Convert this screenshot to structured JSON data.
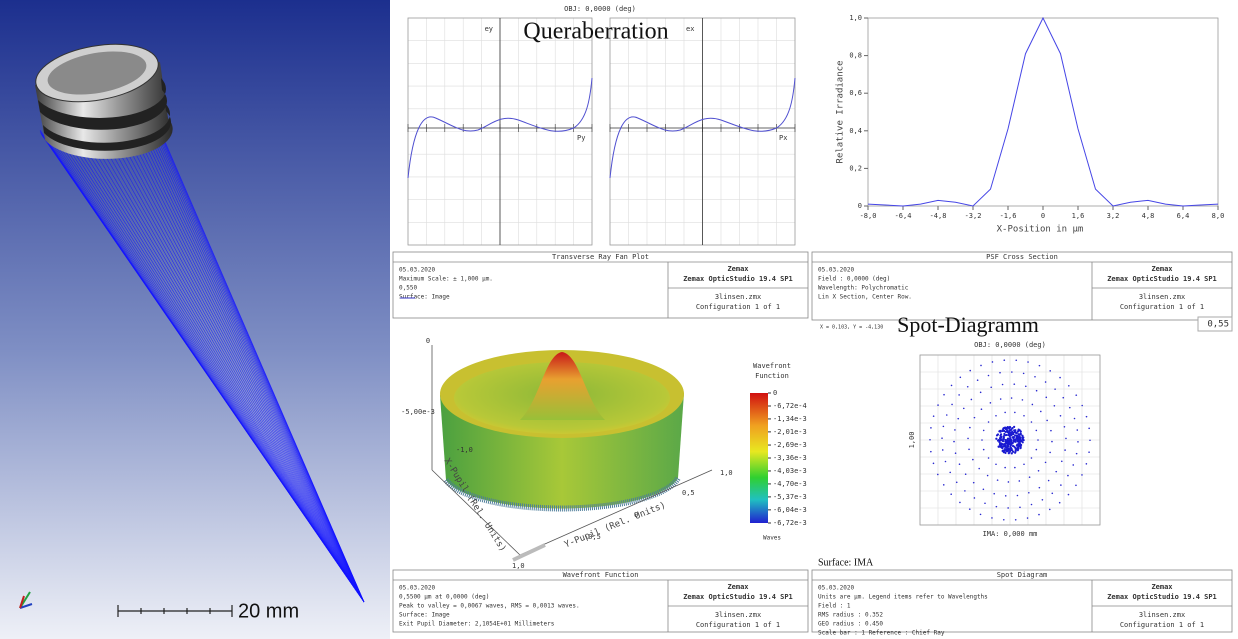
{
  "scene_3d": {
    "scale_label": "20 mm"
  },
  "ray_fan": {
    "overlay_title": "Queraberration",
    "obj": "OBJ: 0,0000 (deg)",
    "left_axis": "ey",
    "left_pupil": "Py",
    "right_axis": "ex",
    "right_pupil": "Px",
    "info": {
      "caption": "Transverse Ray Fan Plot",
      "date": "05.03.2020",
      "scale": "Maximum Scale: ± 1,000 µm.",
      "wavelength": "0,550",
      "surface": "Surface: Image",
      "brand": "Zemax",
      "product": "Zemax OpticStudio 19.4 SP1",
      "file": "3linsen.zmx",
      "config": "Configuration 1 of 1"
    }
  },
  "psf": {
    "chart_data": {
      "type": "line",
      "x": [
        -8,
        -7.2,
        -6.4,
        -5.6,
        -4.8,
        -4,
        -3.2,
        -2.4,
        -1.6,
        -0.8,
        0,
        0.8,
        1.6,
        2.4,
        3.2,
        4,
        4.8,
        5.6,
        6.4,
        7.2,
        8
      ],
      "values": [
        0.01,
        0.005,
        0,
        0.01,
        0.03,
        0.02,
        0,
        0.09,
        0.41,
        0.81,
        1,
        0.81,
        0.41,
        0.09,
        0,
        0.02,
        0.03,
        0.01,
        0,
        0.005,
        0.01
      ],
      "color": "#4646e6",
      "xlim": [
        -8,
        8
      ],
      "ylim": [
        0,
        1
      ],
      "xticks": [
        {
          "value": -8,
          "label": "-8,0"
        },
        {
          "value": -6.4,
          "label": "-6,4"
        },
        {
          "value": -4.8,
          "label": "-4,8"
        },
        {
          "value": -3.2,
          "label": "-3,2"
        },
        {
          "value": -1.6,
          "label": "-1,6"
        },
        0,
        {
          "value": 1.6,
          "label": "1,6"
        },
        {
          "value": 3.2,
          "label": "3,2"
        },
        {
          "value": 4.8,
          "label": "4,8"
        },
        {
          "value": 6.4,
          "label": "6,4"
        },
        {
          "value": 8,
          "label": "8,0"
        }
      ],
      "yticks": [
        0,
        {
          "value": 0.2,
          "label": "0,2"
        },
        {
          "value": 0.4,
          "label": "0,4"
        },
        {
          "value": 0.6,
          "label": "0,6"
        },
        {
          "value": 0.8,
          "label": "0,8"
        },
        {
          "value": 1,
          "label": "1,0"
        }
      ],
      "xlabel": "X-Position in µm",
      "ylabel": "Relative Irradiance"
    },
    "info": {
      "caption": "PSF Cross Section",
      "date": "05.03.2020",
      "field": "Field       : 0,0000 (deg)",
      "wavelength": "Wavelength: Polychromatic",
      "section": "Lin X Section, Center Row.",
      "brand": "Zemax",
      "product": "Zemax OpticStudio 19.4 SP1",
      "file": "3linsen.zmx",
      "config": "Configuration 1 of 1"
    }
  },
  "wavefront": {
    "title_lines": [
      "Wavefront",
      "Function"
    ],
    "unit": "Waves",
    "clim": [
      -0.00672,
      0
    ],
    "ticks": [
      0,
      {
        "value": -0.000672,
        "label": "-6,72e-4"
      },
      {
        "value": -0.00134,
        "label": "-1,34e-3"
      },
      {
        "value": -0.00201,
        "label": "-2,01e-3"
      },
      {
        "value": -0.00269,
        "label": "-2,69e-3"
      },
      {
        "value": -0.00336,
        "label": "-3,36e-3"
      },
      {
        "value": -0.00403,
        "label": "-4,03e-3"
      },
      {
        "value": -0.0047,
        "label": "-4,70e-3"
      },
      {
        "value": -0.00537,
        "label": "-5,37e-3"
      },
      {
        "value": -0.00604,
        "label": "-6,04e-3"
      },
      {
        "value": -0.00672,
        "label": "-6,72e-3"
      }
    ],
    "z_top": "0",
    "z_mid": "-5,00e-3",
    "x_neg": "-1,0",
    "x_pos": "1,0",
    "y_pos": "0,5",
    "y_zero": "0",
    "y_neg": "-0,5",
    "y_end": "1,0",
    "x_axis_label": "X-Pupil (Rel. Units)",
    "y_axis_label": "Y-Pupil (Rel. Units)",
    "info": {
      "caption": "Wavefront Function",
      "date": "05.03.2020",
      "line1": "0,5500 µm at 0,0000 (deg)",
      "line2": "Peak to valley = 0,0067 waves, RMS = 0,0013 waves.",
      "surface": "Surface: Image",
      "pupil": "Exit Pupil Diameter: 2,1054E+01 Millimeters",
      "brand": "Zemax",
      "product": "Zemax OpticStudio 19.4 SP1",
      "file": "3linsen.zmx",
      "config": "Configuration 1 of 1"
    }
  },
  "spot": {
    "overlay_title": "Spot-Diagramm",
    "cursor": "X = 0,103, Y = -4,130",
    "wavelength_box": "0,55",
    "obj": "OBJ: 0,0000 (deg)",
    "ima": "IMA: 0,000 mm",
    "scale": "1,00",
    "surface": "Surface: IMA",
    "info": {
      "caption": "Spot Diagram",
      "date": "05.03.2020",
      "units": "Units are µm. Legend items refer to Wavelengths",
      "field": "Field       :     1",
      "rms": "RMS radius :   0.352",
      "geo": "GEO radius :   0.450",
      "scalebar": "Scale bar  : 1     Reference  : Chief Ray",
      "brand": "Zemax",
      "product": "Zemax OpticStudio 19.4 SP1",
      "file": "3linsen.zmx",
      "config": "Configuration 1 of 1"
    }
  }
}
